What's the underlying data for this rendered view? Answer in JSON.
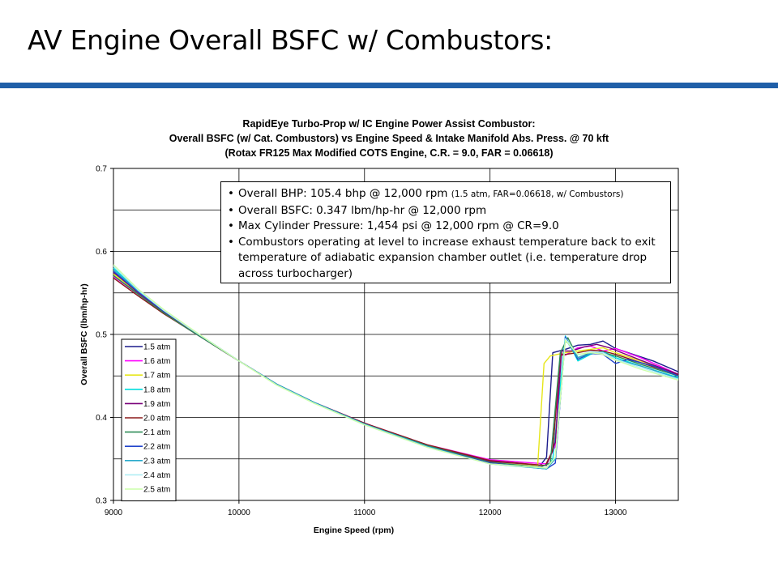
{
  "slide": {
    "title": "AV Engine Overall BSFC w/ Combustors:"
  },
  "notes": {
    "bullets": [
      {
        "main": "Overall BHP: 105.4 bhp @ 12,000 rpm ",
        "small": "(1.5 atm, FAR=0.06618, w/ Combustors)"
      },
      {
        "main": "Overall BSFC: 0.347 lbm/hp-hr @ 12,000 rpm"
      },
      {
        "main": "Max Cylinder Pressure: 1,454 psi @ 12,000 rpm @ CR=9.0"
      },
      {
        "main": "Combustors operating at level to increase exhaust temperature back to exit temperature of adiabatic expansion chamber outlet (i.e. temperature drop across turbocharger)"
      }
    ]
  },
  "chart_data": {
    "type": "line",
    "title": [
      "RapidEye Turbo-Prop w/ IC Engine Power Assist Combustor:",
      "Overall BSFC (w/ Cat. Combustors) vs Engine Speed & Intake Manifold Abs. Press. @ 70 kft",
      "(Rotax FR125 Max Modified COTS Engine, C.R. = 9.0, FAR = 0.06618)"
    ],
    "xlabel": "Engine Speed (rpm)",
    "ylabel": "Overall BSFC (lbm/hp-hr)",
    "xlim": [
      9000,
      13500
    ],
    "ylim": [
      0.3,
      0.7
    ],
    "x_ticks": [
      9000,
      10000,
      11000,
      12000,
      13000
    ],
    "x_tick_labels": [
      "9000",
      "10000",
      "11000",
      "12000",
      "13000"
    ],
    "y_ticks": [
      0.3,
      0.4,
      0.5,
      0.6,
      0.7
    ],
    "y_tick_labels": [
      "0.3",
      "0.4",
      "0.5",
      "0.6",
      "0.7"
    ],
    "grid": true,
    "legend_position": "bottom-left",
    "series": [
      {
        "name": "1.5 atm",
        "color": "#1c1c8c",
        "values": [
          [
            9000,
            0.574
          ],
          [
            9200,
            0.549
          ],
          [
            9400,
            0.528
          ],
          [
            9600,
            0.508
          ],
          [
            9800,
            0.488
          ],
          [
            10000,
            0.468
          ],
          [
            10300,
            0.44
          ],
          [
            10600,
            0.418
          ],
          [
            11000,
            0.393
          ],
          [
            11500,
            0.366
          ],
          [
            12000,
            0.348
          ],
          [
            12400,
            0.342
          ],
          [
            12450,
            0.352
          ],
          [
            12500,
            0.478
          ],
          [
            12600,
            0.482
          ],
          [
            12700,
            0.487
          ],
          [
            12800,
            0.488
          ],
          [
            12900,
            0.492
          ],
          [
            13000,
            0.483
          ],
          [
            13100,
            0.478
          ],
          [
            13300,
            0.468
          ],
          [
            13500,
            0.455
          ]
        ]
      },
      {
        "name": "1.6 atm",
        "color": "#ff00ff",
        "values": [
          [
            9000,
            0.57
          ],
          [
            9200,
            0.548
          ],
          [
            9400,
            0.526
          ],
          [
            9600,
            0.506
          ],
          [
            9800,
            0.487
          ],
          [
            10000,
            0.468
          ],
          [
            10300,
            0.44
          ],
          [
            10600,
            0.418
          ],
          [
            11000,
            0.393
          ],
          [
            11500,
            0.367
          ],
          [
            12000,
            0.349
          ],
          [
            12450,
            0.344
          ],
          [
            12520,
            0.365
          ],
          [
            12560,
            0.478
          ],
          [
            12600,
            0.475
          ],
          [
            12700,
            0.484
          ],
          [
            12800,
            0.486
          ],
          [
            12900,
            0.48
          ],
          [
            13000,
            0.483
          ],
          [
            13200,
            0.472
          ],
          [
            13500,
            0.452
          ]
        ]
      },
      {
        "name": "1.7 atm",
        "color": "#e6e61a",
        "values": [
          [
            9000,
            0.573
          ],
          [
            9200,
            0.55
          ],
          [
            9400,
            0.527
          ],
          [
            9600,
            0.507
          ],
          [
            9800,
            0.487
          ],
          [
            10000,
            0.468
          ],
          [
            10300,
            0.439
          ],
          [
            10600,
            0.417
          ],
          [
            11000,
            0.392
          ],
          [
            11500,
            0.366
          ],
          [
            12000,
            0.347
          ],
          [
            12380,
            0.342
          ],
          [
            12430,
            0.465
          ],
          [
            12480,
            0.474
          ],
          [
            12600,
            0.478
          ],
          [
            12700,
            0.48
          ],
          [
            12800,
            0.482
          ],
          [
            12900,
            0.484
          ],
          [
            13000,
            0.478
          ],
          [
            13200,
            0.468
          ],
          [
            13500,
            0.45
          ]
        ]
      },
      {
        "name": "1.8 atm",
        "color": "#00dddd",
        "values": [
          [
            9000,
            0.58
          ],
          [
            9200,
            0.552
          ],
          [
            9400,
            0.529
          ],
          [
            9600,
            0.508
          ],
          [
            9800,
            0.488
          ],
          [
            10000,
            0.468
          ],
          [
            10300,
            0.44
          ],
          [
            10600,
            0.418
          ],
          [
            11000,
            0.392
          ],
          [
            11500,
            0.365
          ],
          [
            12000,
            0.345
          ],
          [
            12450,
            0.338
          ],
          [
            12500,
            0.35
          ],
          [
            12600,
            0.498
          ],
          [
            12700,
            0.468
          ],
          [
            12800,
            0.476
          ],
          [
            12900,
            0.48
          ],
          [
            13000,
            0.472
          ],
          [
            13200,
            0.462
          ],
          [
            13500,
            0.448
          ]
        ]
      },
      {
        "name": "1.9 atm",
        "color": "#7a007a",
        "values": [
          [
            9000,
            0.575
          ],
          [
            9200,
            0.55
          ],
          [
            9400,
            0.527
          ],
          [
            9600,
            0.507
          ],
          [
            9800,
            0.487
          ],
          [
            10000,
            0.468
          ],
          [
            10300,
            0.44
          ],
          [
            10600,
            0.418
          ],
          [
            11000,
            0.393
          ],
          [
            11500,
            0.366
          ],
          [
            12000,
            0.347
          ],
          [
            12450,
            0.342
          ],
          [
            12520,
            0.37
          ],
          [
            12570,
            0.48
          ],
          [
            12650,
            0.48
          ],
          [
            12750,
            0.485
          ],
          [
            12850,
            0.488
          ],
          [
            12950,
            0.484
          ],
          [
            13050,
            0.478
          ],
          [
            13250,
            0.466
          ],
          [
            13500,
            0.452
          ]
        ]
      },
      {
        "name": "2.0 atm",
        "color": "#8b1a1a",
        "values": [
          [
            9000,
            0.568
          ],
          [
            9200,
            0.546
          ],
          [
            9400,
            0.525
          ],
          [
            9600,
            0.506
          ],
          [
            9800,
            0.487
          ],
          [
            10000,
            0.468
          ],
          [
            10300,
            0.44
          ],
          [
            10600,
            0.418
          ],
          [
            11000,
            0.393
          ],
          [
            11500,
            0.367
          ],
          [
            12000,
            0.348
          ],
          [
            12440,
            0.342
          ],
          [
            12500,
            0.36
          ],
          [
            12560,
            0.475
          ],
          [
            12700,
            0.478
          ],
          [
            12800,
            0.481
          ],
          [
            12900,
            0.48
          ],
          [
            13000,
            0.476
          ],
          [
            13200,
            0.466
          ],
          [
            13500,
            0.451
          ]
        ]
      },
      {
        "name": "2.1 atm",
        "color": "#2e8b57",
        "values": [
          [
            9000,
            0.571
          ],
          [
            9200,
            0.548
          ],
          [
            9400,
            0.526
          ],
          [
            9600,
            0.506
          ],
          [
            9800,
            0.487
          ],
          [
            10000,
            0.468
          ],
          [
            10300,
            0.44
          ],
          [
            10600,
            0.418
          ],
          [
            11000,
            0.392
          ],
          [
            11500,
            0.366
          ],
          [
            12000,
            0.346
          ],
          [
            12400,
            0.34
          ],
          [
            12480,
            0.345
          ],
          [
            12560,
            0.478
          ],
          [
            12620,
            0.496
          ],
          [
            12700,
            0.472
          ],
          [
            12800,
            0.478
          ],
          [
            12900,
            0.478
          ],
          [
            13000,
            0.474
          ],
          [
            13200,
            0.464
          ],
          [
            13500,
            0.45
          ]
        ]
      },
      {
        "name": "2.2 atm",
        "color": "#2244cc",
        "values": [
          [
            9000,
            0.576
          ],
          [
            9200,
            0.551
          ],
          [
            9400,
            0.528
          ],
          [
            9600,
            0.508
          ],
          [
            9800,
            0.488
          ],
          [
            10000,
            0.468
          ],
          [
            10300,
            0.44
          ],
          [
            10600,
            0.418
          ],
          [
            11000,
            0.392
          ],
          [
            11500,
            0.365
          ],
          [
            12000,
            0.345
          ],
          [
            12450,
            0.338
          ],
          [
            12520,
            0.345
          ],
          [
            12600,
            0.497
          ],
          [
            12700,
            0.47
          ],
          [
            12800,
            0.477
          ],
          [
            12900,
            0.476
          ],
          [
            13000,
            0.465
          ],
          [
            13100,
            0.47
          ],
          [
            13300,
            0.462
          ],
          [
            13500,
            0.45
          ]
        ]
      },
      {
        "name": "2.3 atm",
        "color": "#2aaacc",
        "values": [
          [
            9000,
            0.578
          ],
          [
            9200,
            0.552
          ],
          [
            9400,
            0.529
          ],
          [
            9600,
            0.508
          ],
          [
            9800,
            0.488
          ],
          [
            10000,
            0.468
          ],
          [
            10300,
            0.44
          ],
          [
            10600,
            0.418
          ],
          [
            11000,
            0.392
          ],
          [
            11500,
            0.365
          ],
          [
            12000,
            0.344
          ],
          [
            12450,
            0.338
          ],
          [
            12520,
            0.35
          ],
          [
            12600,
            0.494
          ],
          [
            12700,
            0.472
          ],
          [
            12800,
            0.477
          ],
          [
            12900,
            0.479
          ],
          [
            13000,
            0.47
          ],
          [
            13200,
            0.462
          ],
          [
            13500,
            0.447
          ]
        ]
      },
      {
        "name": "2.4 atm",
        "color": "#b0eef5",
        "values": [
          [
            9000,
            0.582
          ],
          [
            9200,
            0.553
          ],
          [
            9400,
            0.529
          ],
          [
            9600,
            0.508
          ],
          [
            9800,
            0.488
          ],
          [
            10000,
            0.468
          ],
          [
            10300,
            0.439
          ],
          [
            10600,
            0.417
          ],
          [
            11000,
            0.391
          ],
          [
            11500,
            0.364
          ],
          [
            12000,
            0.344
          ],
          [
            12450,
            0.339
          ],
          [
            12520,
            0.352
          ],
          [
            12600,
            0.495
          ],
          [
            12700,
            0.475
          ],
          [
            12800,
            0.479
          ],
          [
            12900,
            0.478
          ],
          [
            13000,
            0.47
          ],
          [
            13200,
            0.46
          ],
          [
            13500,
            0.446
          ]
        ]
      },
      {
        "name": "2.5 atm",
        "color": "#ccffaa",
        "values": [
          [
            9000,
            0.584
          ],
          [
            9200,
            0.554
          ],
          [
            9400,
            0.53
          ],
          [
            9600,
            0.509
          ],
          [
            9800,
            0.488
          ],
          [
            10000,
            0.468
          ],
          [
            10300,
            0.439
          ],
          [
            10600,
            0.417
          ],
          [
            11000,
            0.391
          ],
          [
            11500,
            0.364
          ],
          [
            12000,
            0.344
          ],
          [
            12450,
            0.339
          ],
          [
            12520,
            0.352
          ],
          [
            12600,
            0.493
          ],
          [
            12700,
            0.476
          ],
          [
            12800,
            0.478
          ],
          [
            12900,
            0.476
          ],
          [
            13000,
            0.469
          ],
          [
            13200,
            0.458
          ],
          [
            13500,
            0.445
          ]
        ]
      }
    ]
  }
}
